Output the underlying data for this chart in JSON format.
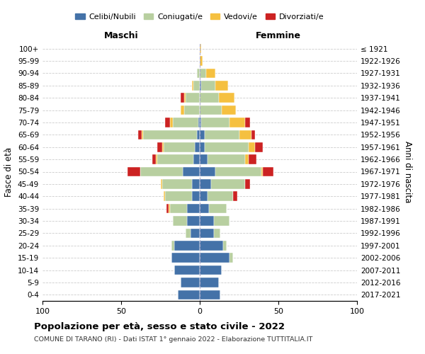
{
  "age_groups": [
    "0-4",
    "5-9",
    "10-14",
    "15-19",
    "20-24",
    "25-29",
    "30-34",
    "35-39",
    "40-44",
    "45-49",
    "50-54",
    "55-59",
    "60-64",
    "65-69",
    "70-74",
    "75-79",
    "80-84",
    "85-89",
    "90-94",
    "95-99",
    "100+"
  ],
  "birth_years": [
    "2017-2021",
    "2012-2016",
    "2007-2011",
    "2002-2006",
    "1997-2001",
    "1992-1996",
    "1987-1991",
    "1982-1986",
    "1977-1981",
    "1972-1976",
    "1967-1971",
    "1962-1966",
    "1957-1961",
    "1952-1956",
    "1947-1951",
    "1942-1946",
    "1937-1941",
    "1932-1936",
    "1927-1931",
    "1922-1926",
    "≤ 1921"
  ],
  "colors": {
    "celibi": "#4472a8",
    "coniugati": "#b8cfa0",
    "vedovi": "#f5c040",
    "divorziati": "#cc2222"
  },
  "maschi": {
    "celibi": [
      14,
      12,
      16,
      18,
      16,
      6,
      8,
      8,
      5,
      5,
      11,
      4,
      3,
      2,
      1,
      0,
      0,
      0,
      0,
      0,
      0
    ],
    "coniugati": [
      0,
      0,
      0,
      0,
      2,
      3,
      9,
      11,
      17,
      19,
      27,
      23,
      20,
      34,
      16,
      10,
      9,
      4,
      2,
      0,
      0
    ],
    "vedovi": [
      0,
      0,
      0,
      0,
      0,
      0,
      0,
      1,
      1,
      1,
      0,
      1,
      1,
      1,
      2,
      2,
      1,
      1,
      0,
      0,
      0
    ],
    "divorziati": [
      0,
      0,
      0,
      0,
      0,
      0,
      0,
      1,
      0,
      0,
      8,
      2,
      3,
      2,
      3,
      0,
      2,
      0,
      0,
      0,
      0
    ]
  },
  "femmine": {
    "celibi": [
      13,
      12,
      14,
      19,
      15,
      9,
      9,
      6,
      5,
      7,
      10,
      5,
      3,
      3,
      1,
      0,
      0,
      1,
      0,
      0,
      0
    ],
    "coniugati": [
      0,
      0,
      0,
      2,
      2,
      4,
      10,
      11,
      16,
      22,
      29,
      24,
      28,
      22,
      18,
      14,
      12,
      9,
      4,
      0,
      0
    ],
    "vedovi": [
      0,
      0,
      0,
      0,
      0,
      0,
      0,
      0,
      0,
      0,
      1,
      2,
      4,
      8,
      10,
      9,
      10,
      8,
      6,
      2,
      1
    ],
    "divorziati": [
      0,
      0,
      0,
      0,
      0,
      0,
      0,
      0,
      3,
      3,
      7,
      5,
      5,
      2,
      3,
      0,
      0,
      0,
      0,
      0,
      0
    ]
  },
  "xlim": 100,
  "title": "Popolazione per età, sesso e stato civile - 2022",
  "subtitle": "COMUNE DI TARANO (RI) - Dati ISTAT 1° gennaio 2022 - Elaborazione TUTTITALIA.IT",
  "xlabel_left": "Maschi",
  "xlabel_right": "Femmine",
  "ylabel": "Fasce di età",
  "ylabel_right": "Anni di nascita",
  "legend_labels": [
    "Celibi/Nubili",
    "Coniugati/e",
    "Vedovi/e",
    "Divorziati/e"
  ]
}
